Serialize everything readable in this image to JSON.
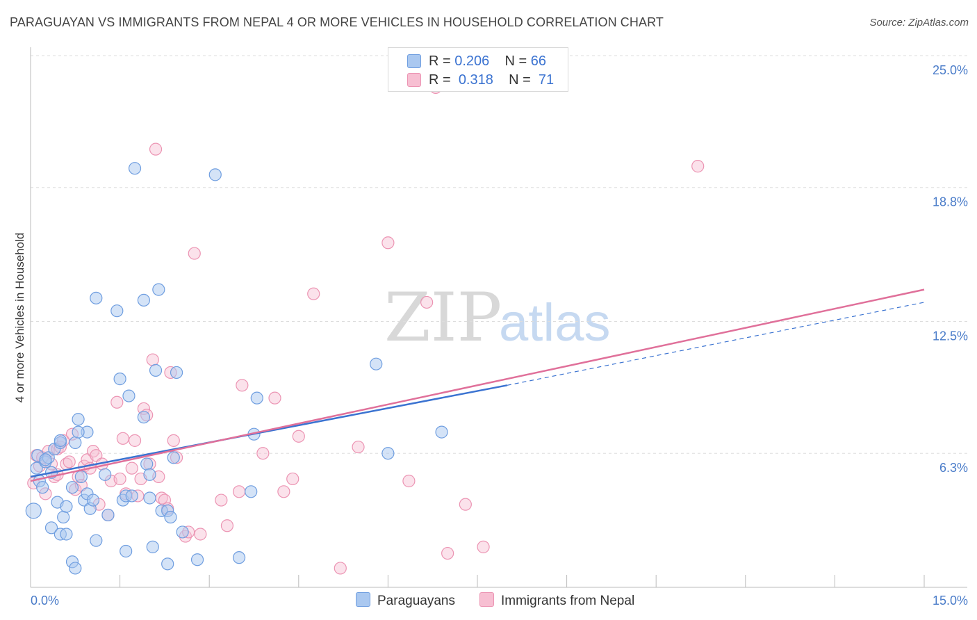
{
  "title": "PARAGUAYAN VS IMMIGRANTS FROM NEPAL 4 OR MORE VEHICLES IN HOUSEHOLD CORRELATION CHART",
  "source": "Source: ZipAtlas.com",
  "watermark": {
    "zip": "ZIP",
    "atlas": "atlas"
  },
  "legend": {
    "r_label": "R =",
    "n_label": "N =",
    "series": [
      {
        "r": "0.206",
        "n": "66"
      },
      {
        "r": "0.318",
        "n": "71"
      }
    ]
  },
  "colors": {
    "paraguayans_fill": "#aac8f0",
    "paraguayans_stroke": "#6f9ee0",
    "paraguayans_line": "#3b73d1",
    "nepal_fill": "#f7bfd2",
    "nepal_stroke": "#ec94b3",
    "nepal_line": "#e0709a",
    "tick_text": "#4a7cc9",
    "grid": "#dddddd"
  },
  "chart_data": {
    "type": "scatter",
    "title": "PARAGUAYAN VS IMMIGRANTS FROM NEPAL 4 OR MORE VEHICLES IN HOUSEHOLD CORRELATION CHART",
    "xlabel": "",
    "ylabel": "4 or more Vehicles in Household",
    "xlim": [
      0,
      15
    ],
    "ylim": [
      0,
      25
    ],
    "x_tick_labels": [
      "0.0%",
      "15.0%"
    ],
    "y_ticks": [
      6.3,
      12.5,
      18.8,
      25.0
    ],
    "y_tick_labels": [
      "6.3%",
      "12.5%",
      "18.8%",
      "25.0%"
    ],
    "grid": true,
    "legend_position": "top-center",
    "series": [
      {
        "name": "Paraguayans",
        "r": 0.206,
        "n": 66,
        "trend": {
          "x0": 0,
          "y0": 5.2,
          "x1": 8.0,
          "y1": 9.5,
          "x1_dashed": 15.0,
          "y1_dashed": 13.4
        },
        "points": [
          [
            0.05,
            3.6
          ],
          [
            0.1,
            5.6
          ],
          [
            0.12,
            6.2
          ],
          [
            0.15,
            5.0
          ],
          [
            0.2,
            4.7
          ],
          [
            0.25,
            5.9
          ],
          [
            0.3,
            6.1
          ],
          [
            0.35,
            5.4
          ],
          [
            0.4,
            6.5
          ],
          [
            0.45,
            4.0
          ],
          [
            0.5,
            6.8
          ],
          [
            0.55,
            3.3
          ],
          [
            0.6,
            3.8
          ],
          [
            0.35,
            2.8
          ],
          [
            0.5,
            2.5
          ],
          [
            0.6,
            2.5
          ],
          [
            0.7,
            4.7
          ],
          [
            0.75,
            6.8
          ],
          [
            0.8,
            7.9
          ],
          [
            0.85,
            5.2
          ],
          [
            0.9,
            4.1
          ],
          [
            0.95,
            4.4
          ],
          [
            1.0,
            3.7
          ],
          [
            1.05,
            4.1
          ],
          [
            1.1,
            2.2
          ],
          [
            0.95,
            7.3
          ],
          [
            0.8,
            7.3
          ],
          [
            1.1,
            13.6
          ],
          [
            1.3,
            3.4
          ],
          [
            1.25,
            5.3
          ],
          [
            1.45,
            13.0
          ],
          [
            1.5,
            9.8
          ],
          [
            1.55,
            4.1
          ],
          [
            1.6,
            4.3
          ],
          [
            1.65,
            9.0
          ],
          [
            1.7,
            4.3
          ],
          [
            1.75,
            19.7
          ],
          [
            1.9,
            13.5
          ],
          [
            1.9,
            8.0
          ],
          [
            1.95,
            5.8
          ],
          [
            2.0,
            5.3
          ],
          [
            2.0,
            4.2
          ],
          [
            2.05,
            1.9
          ],
          [
            2.1,
            10.2
          ],
          [
            2.15,
            14.0
          ],
          [
            2.2,
            3.6
          ],
          [
            2.3,
            3.6
          ],
          [
            2.35,
            3.3
          ],
          [
            2.4,
            6.1
          ],
          [
            2.45,
            10.1
          ],
          [
            2.55,
            2.6
          ],
          [
            2.8,
            1.3
          ],
          [
            3.1,
            19.4
          ],
          [
            3.5,
            1.4
          ],
          [
            3.7,
            4.5
          ],
          [
            3.75,
            7.2
          ],
          [
            3.8,
            8.9
          ],
          [
            1.6,
            1.7
          ],
          [
            0.7,
            1.2
          ],
          [
            0.75,
            0.9
          ],
          [
            2.3,
            1.1
          ],
          [
            5.8,
            10.5
          ],
          [
            6.0,
            6.3
          ],
          [
            6.9,
            7.3
          ],
          [
            0.5,
            6.9
          ],
          [
            0.25,
            6.0
          ]
        ]
      },
      {
        "name": "Immigrants from Nepal",
        "r": 0.318,
        "n": 71,
        "trend": {
          "x0": 0,
          "y0": 5.0,
          "x1": 15.0,
          "y1": 14.0
        },
        "points": [
          [
            0.05,
            4.9
          ],
          [
            0.1,
            6.2
          ],
          [
            0.15,
            5.7
          ],
          [
            0.2,
            6.1
          ],
          [
            0.25,
            4.4
          ],
          [
            0.3,
            6.4
          ],
          [
            0.35,
            5.8
          ],
          [
            0.4,
            5.2
          ],
          [
            0.45,
            6.5
          ],
          [
            0.5,
            6.6
          ],
          [
            0.55,
            6.9
          ],
          [
            0.6,
            5.8
          ],
          [
            0.65,
            5.9
          ],
          [
            0.7,
            7.2
          ],
          [
            0.75,
            4.6
          ],
          [
            0.8,
            5.2
          ],
          [
            0.85,
            4.8
          ],
          [
            0.9,
            5.7
          ],
          [
            0.95,
            6.0
          ],
          [
            1.0,
            5.6
          ],
          [
            1.05,
            6.4
          ],
          [
            1.1,
            6.2
          ],
          [
            1.15,
            3.9
          ],
          [
            1.2,
            5.8
          ],
          [
            1.3,
            3.4
          ],
          [
            1.35,
            5.0
          ],
          [
            1.45,
            8.7
          ],
          [
            1.5,
            5.1
          ],
          [
            1.55,
            7.0
          ],
          [
            1.6,
            4.4
          ],
          [
            1.7,
            5.6
          ],
          [
            1.75,
            6.9
          ],
          [
            1.8,
            4.3
          ],
          [
            1.85,
            5.1
          ],
          [
            1.9,
            8.4
          ],
          [
            1.95,
            8.1
          ],
          [
            2.0,
            5.8
          ],
          [
            2.05,
            10.7
          ],
          [
            2.1,
            20.6
          ],
          [
            2.15,
            5.2
          ],
          [
            2.2,
            4.2
          ],
          [
            2.25,
            4.1
          ],
          [
            2.3,
            3.7
          ],
          [
            2.35,
            10.1
          ],
          [
            2.4,
            6.9
          ],
          [
            2.45,
            6.1
          ],
          [
            2.6,
            2.4
          ],
          [
            2.65,
            2.6
          ],
          [
            2.75,
            15.7
          ],
          [
            2.85,
            2.5
          ],
          [
            3.2,
            4.1
          ],
          [
            3.3,
            2.9
          ],
          [
            3.5,
            4.5
          ],
          [
            3.55,
            9.5
          ],
          [
            3.9,
            6.3
          ],
          [
            4.1,
            8.9
          ],
          [
            4.25,
            4.5
          ],
          [
            4.4,
            5.1
          ],
          [
            4.5,
            7.1
          ],
          [
            4.75,
            13.8
          ],
          [
            5.2,
            0.9
          ],
          [
            5.5,
            6.6
          ],
          [
            6.0,
            16.2
          ],
          [
            6.35,
            5.0
          ],
          [
            6.65,
            13.4
          ],
          [
            6.8,
            23.5
          ],
          [
            7.0,
            1.6
          ],
          [
            7.3,
            3.9
          ],
          [
            7.6,
            1.9
          ],
          [
            11.2,
            19.8
          ],
          [
            0.45,
            5.3
          ]
        ]
      }
    ]
  },
  "bottom_legend": {
    "paraguayans": "Paraguayans",
    "nepal": "Immigrants from Nepal"
  }
}
